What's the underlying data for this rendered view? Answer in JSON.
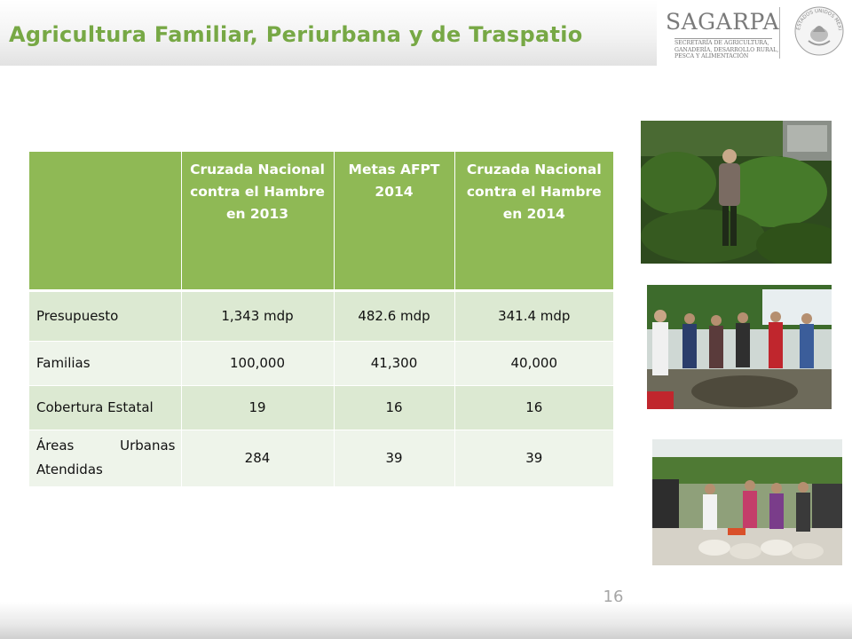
{
  "header": {
    "title": "Agricultura Familiar, Periurbana y de Traspatio"
  },
  "logo": {
    "wordmark": "SAGARPA",
    "subtitle_lines": [
      "SECRETARÍA DE AGRICULTURA,",
      "GANADERÍA, DESARROLLO RURAL,",
      "PESCA Y ALIMENTACIÓN"
    ],
    "seal_text": "ESTADOS UNIDOS MEXICANOS"
  },
  "table": {
    "columns": [
      "",
      "Cruzada Nacional contra el Hambre en 2013",
      "Metas AFPT 2014",
      "Cruzada Nacional contra el Hambre en 2014"
    ],
    "rows": [
      {
        "label": "Presupuesto",
        "values": [
          "1,343 mdp",
          "482.6 mdp",
          "341.4 mdp"
        ]
      },
      {
        "label": "Familias",
        "values": [
          "100,000",
          "41,300",
          "40,000"
        ]
      },
      {
        "label": "Cobertura Estatal",
        "values": [
          "19",
          "16",
          "16"
        ]
      },
      {
        "label": "Áreas Urbanas Atendidas",
        "values": [
          "284",
          "39",
          "39"
        ]
      }
    ]
  },
  "photos": [
    {
      "icon": "garden-photo"
    },
    {
      "icon": "group-workshop-photo"
    },
    {
      "icon": "supplies-distribution-photo"
    }
  ],
  "footer": {
    "page_number": "16"
  }
}
